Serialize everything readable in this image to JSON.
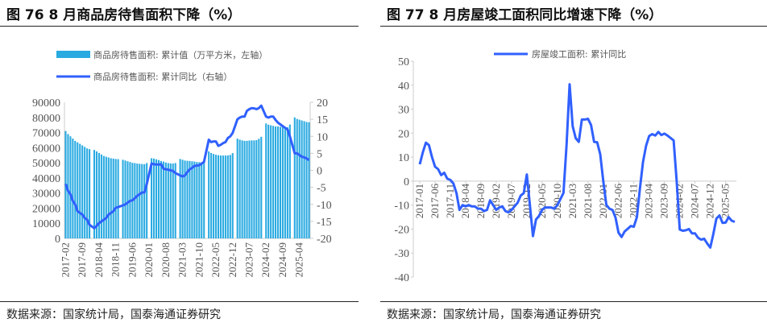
{
  "chart_data": [
    {
      "type": "bar+line",
      "title": "图 76 8 月商品房待售面积下降（%）",
      "source": "数据来源：国家统计局，国泰海通证券研究",
      "start_month": "2017-02",
      "x_tick_labels": [
        "2017-02",
        "2017-09",
        "2018-04",
        "2018-11",
        "2019-06",
        "2020-01",
        "2020-08",
        "2021-03",
        "2021-10",
        "2022-05",
        "2022-12",
        "2023-07",
        "2024-02",
        "2024-09",
        "2025-04"
      ],
      "y_left": {
        "ylim": [
          0,
          90000
        ],
        "ticks": [
          "0",
          "10000",
          "20000",
          "30000",
          "40000",
          "50000",
          "60000",
          "70000",
          "80000",
          "90000"
        ]
      },
      "y_right": {
        "ylim": [
          -20,
          20
        ],
        "ticks": [
          "-20",
          "-15",
          "-10",
          "-5",
          "0",
          "5",
          "10",
          "15",
          "20"
        ]
      },
      "legend_position": "top",
      "series": [
        {
          "name": "商品房待售面积: 累计值（万平方米，左轴）",
          "type": "bar",
          "axis": "left",
          "color": "#29aae1",
          "values": [
            71000,
            69000,
            67500,
            66000,
            64500,
            63500,
            62500,
            61500,
            60500,
            59500,
            59000,
            null,
            58500,
            57500,
            56500,
            55500,
            54500,
            54000,
            53500,
            53000,
            52800,
            52500,
            52400,
            null,
            52000,
            51500,
            51000,
            50500,
            50000,
            49800,
            49500,
            49300,
            49200,
            49100,
            49800,
            null,
            53000,
            52800,
            52300,
            51800,
            51200,
            50800,
            50200,
            49800,
            49600,
            49500,
            49850,
            null,
            52500,
            52000,
            51500,
            51300,
            51200,
            51000,
            50800,
            50500,
            50400,
            50300,
            51000,
            null,
            57500,
            56500,
            55800,
            55300,
            55000,
            54800,
            54800,
            54800,
            54900,
            55200,
            56400,
            null,
            66000,
            65300,
            64800,
            64500,
            64500,
            64700,
            64800,
            64800,
            65000,
            65900,
            67200,
            null,
            76000,
            75200,
            74800,
            74400,
            74000,
            74000,
            73800,
            73800,
            73500,
            73500,
            75300,
            null,
            80000,
            79000,
            78500,
            78000,
            77500,
            77000,
            76800
          ]
        },
        {
          "name": "商品房待售面积: 累计同比（右轴）",
          "type": "line",
          "axis": "right",
          "color": "#3060ff",
          "values": [
            -4,
            -6,
            -7,
            -9,
            -10,
            -12,
            -12.5,
            -13,
            -14,
            -14.5,
            -16,
            null,
            -17,
            -16.3,
            -15.5,
            -15,
            -14.5,
            -14,
            -13,
            -12.5,
            -12,
            -11,
            -10.8,
            null,
            -10.3,
            -10,
            -9.5,
            -9,
            -8.8,
            -8.2,
            -7.5,
            -7,
            -6.5,
            -6.5,
            -4,
            null,
            2,
            1.8,
            1.7,
            1.7,
            1.8,
            0.5,
            0.3,
            0.2,
            0,
            -0.2,
            -0.8,
            null,
            -1.5,
            -1.8,
            -1.5,
            -0.5,
            0.3,
            0.7,
            1.3,
            1.4,
            1.5,
            2,
            2.5,
            null,
            9,
            8.3,
            8.5,
            8.5,
            7.2,
            7.5,
            8,
            8.3,
            9.5,
            10,
            11,
            null,
            15,
            15.5,
            15.8,
            15.8,
            17.5,
            18,
            18.3,
            18.2,
            18,
            18.3,
            19,
            null,
            15.8,
            15.5,
            15.8,
            15.8,
            14.8,
            14,
            13.5,
            13,
            12.5,
            12,
            10,
            null,
            5,
            5,
            4.5,
            4,
            3.8,
            3.5,
            3
          ]
        }
      ]
    },
    {
      "type": "line",
      "title": "图 77 8 月房屋竣工面积同比增速下降（%）",
      "source": "数据来源：国家统计局，国泰海通证券研究",
      "start_month": "2017-01",
      "x_tick_labels": [
        "2017-01",
        "2017-06",
        "2017-11",
        "2018-04",
        "2018-09",
        "2019-02",
        "2019-07",
        "2019-12",
        "2020-05",
        "2020-10",
        "2021-03",
        "2021-08",
        "2022-01",
        "2022-06",
        "2022-11",
        "2023-04",
        "2023-09",
        "2024-02",
        "2024-07",
        "2024-12",
        "2025-05"
      ],
      "y": {
        "ylim": [
          -40,
          50
        ],
        "ticks": [
          "50",
          "40",
          "30",
          "20",
          "10",
          "0",
          "-10",
          "-20",
          "-30",
          "-40"
        ]
      },
      "legend_position": "top",
      "series": [
        {
          "name": "房屋竣工面积: 累计同比",
          "color": "#3060ff",
          "values": [
            7,
            12,
            16,
            15,
            10,
            6,
            5,
            2.5,
            3.5,
            1,
            0.5,
            -1,
            -5,
            -12,
            -10,
            -10.5,
            -10,
            -10.5,
            -10.5,
            -11.5,
            -11.5,
            -12.5,
            -12,
            -8,
            -10,
            -12,
            -11,
            -10.5,
            -12.5,
            -13,
            -12,
            -10.5,
            -9,
            -6,
            -5,
            2.8,
            -10,
            -22.9,
            -16,
            -14.5,
            -12,
            -11,
            -11,
            -11,
            -11.5,
            -10,
            -7.5,
            -4.9,
            15,
            40.4,
            22.9,
            17.9,
            16.4,
            25.7,
            25.7,
            26,
            23.4,
            16.4,
            16.2,
            11.2,
            0,
            -9.9,
            -11.5,
            -12,
            -15.2,
            -21.5,
            -23.3,
            -21,
            -19.9,
            -18.7,
            -19,
            -15,
            -3,
            8,
            14.7,
            18.8,
            19.6,
            19,
            20.5,
            19.2,
            19.8,
            19,
            18,
            17,
            0,
            -20.2,
            -20.7,
            -20.5,
            -20,
            -21.8,
            -21.8,
            -23.6,
            -24.4,
            -24,
            -26,
            -27.7,
            -22,
            -15.6,
            -14.3,
            -17.4,
            -17.3,
            -15,
            -16.5,
            -17
          ]
        }
      ]
    }
  ]
}
